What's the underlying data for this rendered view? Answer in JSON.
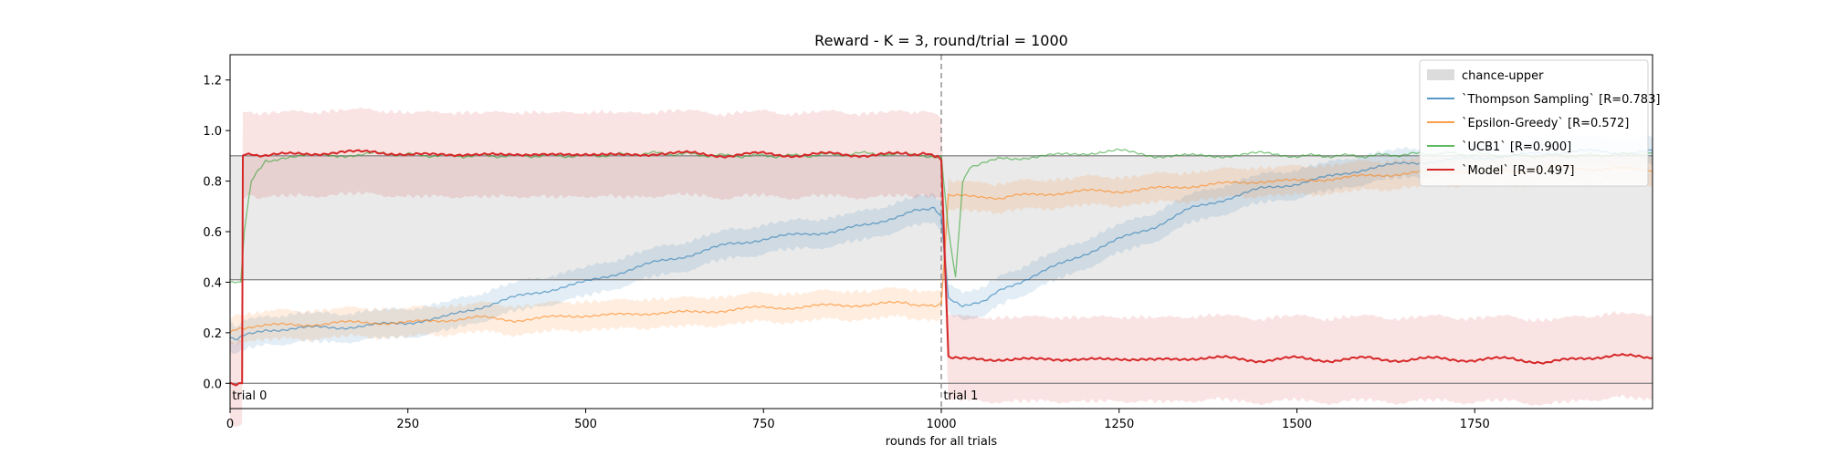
{
  "chart_data": {
    "type": "line",
    "title": "Reward - K = 3, round/trial = 1000",
    "xlabel": "rounds for all trials",
    "ylabel": "",
    "xlim": [
      0,
      2000
    ],
    "ylim": [
      -0.1,
      1.3
    ],
    "xticks": [
      0,
      250,
      500,
      750,
      1000,
      1250,
      1500,
      1750
    ],
    "xtick_labels": [
      "0",
      "250",
      "500",
      "750",
      "1000",
      "1250",
      "1500",
      "1750"
    ],
    "yticks": [
      0.0,
      0.2,
      0.4,
      0.6,
      0.8,
      1.0,
      1.2
    ],
    "ytick_labels": [
      "0.0",
      "0.2",
      "0.4",
      "0.6",
      "0.8",
      "1.0",
      "1.2"
    ],
    "grid": false,
    "legend_position": "top-right",
    "hlines": [
      0.0,
      0.41,
      0.9
    ],
    "vlines": [
      {
        "x": 1000,
        "style": "dashed"
      }
    ],
    "annotations": [
      {
        "text": "trial 0",
        "x": 3,
        "y": 0.0
      },
      {
        "text": "trial 1",
        "x": 1003,
        "y": 0.0
      }
    ],
    "band": {
      "name": "chance-upper",
      "y_low": 0.41,
      "y_high": 0.9,
      "color": "#dcdcdc"
    },
    "series": [
      {
        "name": "`Thompson Sampling` [R=0.783]",
        "color": "#1f77b4",
        "band_width": 0.05,
        "x": [
          0,
          10,
          20,
          50,
          100,
          150,
          200,
          250,
          300,
          350,
          400,
          450,
          500,
          550,
          600,
          650,
          700,
          750,
          800,
          850,
          900,
          950,
          990,
          1000,
          1010,
          1030,
          1060,
          1100,
          1150,
          1200,
          1250,
          1300,
          1350,
          1400,
          1450,
          1500,
          1550,
          1600,
          1650,
          1700,
          1750,
          1800,
          1850,
          1900,
          1950,
          2000
        ],
        "y": [
          0.18,
          0.18,
          0.19,
          0.21,
          0.22,
          0.22,
          0.23,
          0.24,
          0.26,
          0.3,
          0.34,
          0.37,
          0.4,
          0.44,
          0.48,
          0.51,
          0.55,
          0.57,
          0.59,
          0.6,
          0.63,
          0.67,
          0.7,
          0.66,
          0.33,
          0.31,
          0.33,
          0.39,
          0.45,
          0.51,
          0.57,
          0.62,
          0.69,
          0.73,
          0.77,
          0.79,
          0.82,
          0.85,
          0.87,
          0.88,
          0.89,
          0.9,
          0.91,
          0.92,
          0.91,
          0.92
        ]
      },
      {
        "name": "`Epsilon-Greedy` [R=0.572]",
        "color": "#ff7f0e",
        "band_width": 0.05,
        "x": [
          0,
          10,
          20,
          50,
          100,
          150,
          200,
          250,
          300,
          350,
          400,
          450,
          500,
          550,
          600,
          650,
          700,
          750,
          800,
          850,
          900,
          950,
          990,
          1000,
          1010,
          1030,
          1060,
          1100,
          1150,
          1200,
          1250,
          1300,
          1350,
          1400,
          1450,
          1500,
          1550,
          1600,
          1650,
          1700,
          1750,
          1800,
          1850,
          1900,
          1950,
          2000
        ],
        "y": [
          0.2,
          0.21,
          0.22,
          0.23,
          0.23,
          0.24,
          0.24,
          0.24,
          0.25,
          0.26,
          0.25,
          0.26,
          0.27,
          0.27,
          0.28,
          0.28,
          0.29,
          0.3,
          0.3,
          0.31,
          0.31,
          0.32,
          0.3,
          0.31,
          0.75,
          0.74,
          0.73,
          0.74,
          0.75,
          0.76,
          0.76,
          0.77,
          0.78,
          0.79,
          0.8,
          0.8,
          0.81,
          0.82,
          0.83,
          0.84,
          0.84,
          0.84,
          0.85,
          0.85,
          0.85,
          0.84
        ]
      },
      {
        "name": "`UCB1` [R=0.900]",
        "color": "#2ca02c",
        "band_width": 0.0,
        "x": [
          0,
          15,
          20,
          30,
          40,
          50,
          70,
          100,
          150,
          200,
          300,
          400,
          500,
          600,
          700,
          800,
          900,
          990,
          1000,
          1010,
          1020,
          1030,
          1040,
          1060,
          1100,
          1150,
          1200,
          1250,
          1300,
          1350,
          1400,
          1450,
          1500,
          1600,
          1700,
          1800,
          1900,
          2000
        ],
        "y": [
          0.4,
          0.4,
          0.6,
          0.8,
          0.85,
          0.88,
          0.89,
          0.9,
          0.9,
          0.91,
          0.9,
          0.9,
          0.9,
          0.91,
          0.9,
          0.9,
          0.91,
          0.9,
          0.9,
          0.6,
          0.42,
          0.8,
          0.85,
          0.88,
          0.89,
          0.9,
          0.91,
          0.92,
          0.9,
          0.9,
          0.9,
          0.91,
          0.9,
          0.9,
          0.91,
          0.9,
          0.9,
          0.91
        ]
      },
      {
        "name": "`Model` [R=0.497]",
        "color": "#d62728",
        "band_width": 0.16,
        "x": [
          0,
          17,
          18,
          30,
          50,
          100,
          150,
          200,
          250,
          300,
          350,
          400,
          450,
          500,
          550,
          600,
          650,
          700,
          750,
          800,
          850,
          900,
          950,
          995,
          1000,
          1010,
          1020,
          1050,
          1100,
          1150,
          1200,
          1250,
          1300,
          1350,
          1400,
          1450,
          1500,
          1550,
          1600,
          1650,
          1700,
          1750,
          1800,
          1850,
          1900,
          1950,
          2000
        ],
        "y": [
          0.0,
          0.0,
          0.9,
          0.91,
          0.9,
          0.91,
          0.91,
          0.92,
          0.9,
          0.91,
          0.9,
          0.91,
          0.9,
          0.91,
          0.9,
          0.91,
          0.91,
          0.9,
          0.91,
          0.9,
          0.91,
          0.9,
          0.91,
          0.9,
          0.88,
          0.11,
          0.1,
          0.1,
          0.09,
          0.1,
          0.09,
          0.1,
          0.09,
          0.1,
          0.1,
          0.09,
          0.1,
          0.09,
          0.1,
          0.09,
          0.1,
          0.09,
          0.1,
          0.08,
          0.1,
          0.11,
          0.1
        ]
      }
    ]
  },
  "legend": {
    "items": [
      {
        "label": "chance-upper",
        "kind": "patch",
        "color": "#dcdcdc"
      },
      {
        "label": "`Thompson Sampling` [R=0.783]",
        "kind": "line",
        "color": "#1f77b4"
      },
      {
        "label": "`Epsilon-Greedy` [R=0.572]",
        "kind": "line",
        "color": "#ff7f0e"
      },
      {
        "label": "`UCB1` [R=0.900]",
        "kind": "line",
        "color": "#2ca02c"
      },
      {
        "label": "`Model` [R=0.497]",
        "kind": "line",
        "color": "#d62728"
      }
    ]
  }
}
